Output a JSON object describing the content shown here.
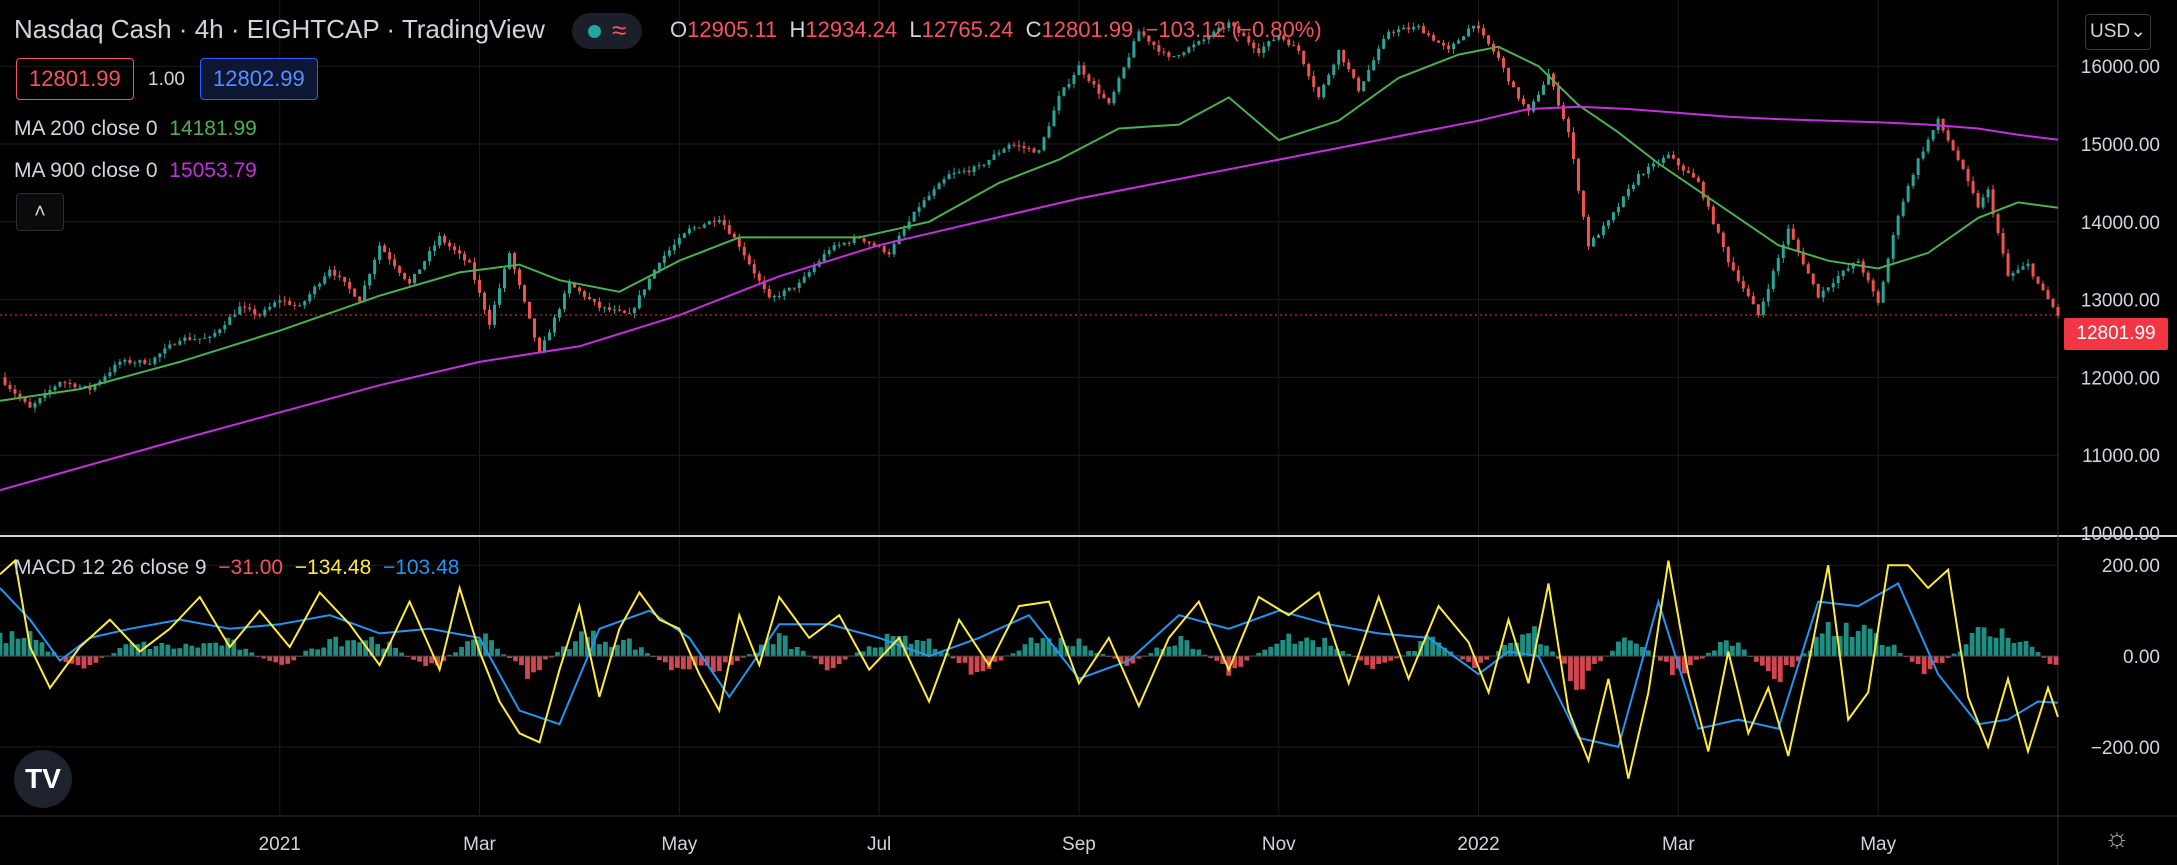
{
  "header": {
    "symbol": "Nasdaq Cash",
    "interval": "4h",
    "broker": "EIGHTCAP",
    "platform": "TradingView",
    "separator": "·",
    "status_icons": [
      "live-dot-icon",
      "wave-icon"
    ],
    "status_glyph": "≈"
  },
  "ohlc": {
    "o_label": "O",
    "o": "12905.11",
    "h_label": "H",
    "h": "12934.24",
    "l_label": "L",
    "l": "12765.24",
    "c_label": "C",
    "c": "12801.99",
    "change": "−103.12 (−0.80%)"
  },
  "trade": {
    "bid": "12801.99",
    "spread": "1.00",
    "ask": "12802.99"
  },
  "indicators": {
    "ma200": {
      "label": "MA 200 close 0",
      "value": "14181.99",
      "color": "#4caf50"
    },
    "ma900": {
      "label": "MA 900 close 0",
      "value": "15053.79",
      "color": "#c62ee0"
    },
    "macd": {
      "label": "MACD 12 26 close 9",
      "hist": "−31.00",
      "macd": "−134.48",
      "signal": "−103.48",
      "hist_color": "#f7525f",
      "macd_color": "#ffeb3b",
      "signal_color": "#2196f3"
    }
  },
  "controls": {
    "collapse_glyph": "˄",
    "currency": "USD",
    "currency_caret": "⌄",
    "logo_text": "TV",
    "settings_glyph": "☼"
  },
  "last_price_label": "12801.99",
  "colors": {
    "up": "#26a69a",
    "down": "#ef5350",
    "grid": "#1c1c1c",
    "axis_text": "#d1d4dc",
    "last_price": "#f23645"
  },
  "chart_data": [
    {
      "type": "candlestick",
      "title": "Nasdaq Cash · 4h · EIGHTCAP · TradingView",
      "ylim": [
        10000,
        16800
      ],
      "ytick_labels": [
        "16000.00",
        "15000.00",
        "14000.00",
        "13000.00",
        "12000.00",
        "11000.00",
        "10000.00"
      ],
      "y_ticks": [
        16000,
        15000,
        14000,
        13000,
        12000,
        11000,
        10000
      ],
      "x_ticks": [
        "2021",
        "Mar",
        "May",
        "Jul",
        "Sep",
        "Nov",
        "2022",
        "Mar",
        "May"
      ],
      "x_tick_pos": [
        3,
        5,
        7,
        9,
        11,
        13,
        15,
        17,
        19
      ],
      "x_range": [
        0.2,
        20.8
      ],
      "close_path": {
        "x": [
          0.2,
          0.5,
          0.8,
          1.1,
          1.4,
          1.7,
          2.0,
          2.3,
          2.6,
          2.8,
          3.0,
          3.2,
          3.5,
          3.8,
          4.0,
          4.3,
          4.6,
          4.9,
          5.1,
          5.3,
          5.6,
          5.9,
          6.2,
          6.5,
          6.8,
          7.1,
          7.4,
          7.6,
          7.9,
          8.2,
          8.5,
          8.8,
          9.1,
          9.4,
          9.7,
          10.0,
          10.3,
          10.6,
          10.8,
          11.0,
          11.3,
          11.6,
          11.9,
          12.2,
          12.5,
          12.8,
          13.0,
          13.2,
          13.4,
          13.6,
          13.8,
          14.1,
          14.4,
          14.7,
          14.95,
          15.2,
          15.35,
          15.5,
          15.7,
          15.9,
          16.1,
          16.3,
          16.6,
          16.9,
          17.2,
          17.5,
          17.8,
          18.1,
          18.4,
          18.6,
          18.8,
          19.0,
          19.2,
          19.4,
          19.6,
          19.8,
          20.0,
          20.1,
          20.3,
          20.5,
          20.6,
          20.8
        ],
        "y": [
          12000,
          11600,
          11950,
          11850,
          12200,
          12200,
          12500,
          12500,
          12900,
          12800,
          13000,
          12900,
          13400,
          13000,
          13700,
          13200,
          13800,
          13450,
          12700,
          13600,
          12300,
          13200,
          12900,
          12800,
          13500,
          13900,
          14050,
          13700,
          13000,
          13200,
          13650,
          13800,
          13600,
          14200,
          14600,
          14700,
          15000,
          14900,
          15600,
          16000,
          15500,
          16450,
          16100,
          16300,
          16550,
          16200,
          16400,
          16200,
          15600,
          16200,
          15700,
          16450,
          16500,
          16200,
          16550,
          16100,
          15700,
          15400,
          15900,
          15150,
          13700,
          14000,
          14600,
          14850,
          14500,
          13500,
          12800,
          13900,
          13050,
          13300,
          13500,
          12950,
          14100,
          14800,
          15300,
          14800,
          14200,
          14400,
          13300,
          13450,
          13200,
          12802
        ]
      },
      "series": [
        {
          "name": "MA 200 close 0",
          "x": [
            0.2,
            1.0,
            2.0,
            3.0,
            4.0,
            4.8,
            5.4,
            5.8,
            6.4,
            7.0,
            7.6,
            8.2,
            8.8,
            9.5,
            10.2,
            10.8,
            11.4,
            12.0,
            12.5,
            13.0,
            13.6,
            14.2,
            14.8,
            15.2,
            15.6,
            16.0,
            16.4,
            16.8,
            17.2,
            17.6,
            18.0,
            18.5,
            19.0,
            19.5,
            20.0,
            20.4,
            20.8
          ],
          "y": [
            11700,
            11850,
            12200,
            12600,
            13050,
            13350,
            13450,
            13250,
            13100,
            13500,
            13800,
            13800,
            13800,
            14000,
            14500,
            14800,
            15200,
            15250,
            15600,
            15050,
            15300,
            15850,
            16150,
            16250,
            16000,
            15500,
            15150,
            14750,
            14400,
            14050,
            13700,
            13500,
            13400,
            13600,
            14050,
            14250,
            14180
          ]
        },
        {
          "name": "MA 900 close 0",
          "x": [
            0.2,
            2.0,
            4.0,
            5.0,
            6.0,
            7.0,
            8.0,
            9.0,
            10.0,
            11.0,
            12.0,
            13.0,
            14.0,
            15.0,
            15.5,
            16.0,
            16.5,
            17.0,
            17.5,
            18.0,
            18.5,
            19.0,
            19.5,
            20.0,
            20.4,
            20.8
          ],
          "y": [
            10550,
            11200,
            11900,
            12200,
            12400,
            12800,
            13300,
            13700,
            14000,
            14300,
            14550,
            14800,
            15050,
            15300,
            15450,
            15480,
            15450,
            15400,
            15350,
            15320,
            15300,
            15280,
            15250,
            15200,
            15120,
            15054
          ]
        }
      ],
      "last_price": 12801.99
    },
    {
      "type": "line+histogram",
      "title": "MACD 12 26 close 9",
      "ylim": [
        -350,
        260
      ],
      "ytick_labels": [
        "200.00",
        "0.00",
        "−200.00"
      ],
      "y_ticks": [
        200,
        0,
        -200
      ],
      "series": [
        {
          "name": "MACD",
          "x": [
            0.2,
            0.35,
            0.5,
            0.7,
            1.0,
            1.3,
            1.6,
            1.9,
            2.2,
            2.5,
            2.8,
            3.1,
            3.4,
            3.7,
            4.0,
            4.3,
            4.6,
            4.8,
            5.0,
            5.2,
            5.4,
            5.6,
            5.8,
            6.0,
            6.2,
            6.4,
            6.6,
            6.8,
            7.0,
            7.2,
            7.4,
            7.6,
            7.8,
            8.0,
            8.3,
            8.6,
            8.9,
            9.2,
            9.5,
            9.8,
            10.1,
            10.4,
            10.7,
            11.0,
            11.3,
            11.6,
            11.9,
            12.2,
            12.5,
            12.8,
            13.1,
            13.4,
            13.7,
            14.0,
            14.3,
            14.6,
            14.9,
            15.1,
            15.3,
            15.5,
            15.7,
            15.9,
            16.1,
            16.3,
            16.5,
            16.7,
            16.9,
            17.1,
            17.3,
            17.5,
            17.7,
            17.9,
            18.1,
            18.3,
            18.5,
            18.7,
            18.9,
            19.1,
            19.3,
            19.5,
            19.7,
            19.9,
            20.1,
            20.3,
            20.5,
            20.7,
            20.8
          ],
          "y": [
            180,
            210,
            20,
            -70,
            20,
            80,
            10,
            60,
            130,
            20,
            100,
            20,
            140,
            70,
            -20,
            120,
            -30,
            150,
            10,
            -100,
            -170,
            -190,
            -30,
            110,
            -90,
            60,
            140,
            80,
            60,
            -40,
            -120,
            90,
            -20,
            130,
            40,
            90,
            -30,
            40,
            -100,
            80,
            -20,
            110,
            120,
            -60,
            40,
            -110,
            40,
            120,
            -30,
            130,
            90,
            140,
            -60,
            130,
            -50,
            110,
            30,
            -80,
            80,
            -60,
            160,
            -120,
            -230,
            -50,
            -270,
            -80,
            210,
            -40,
            -210,
            10,
            -170,
            -70,
            -220,
            -20,
            200,
            -140,
            -80,
            200,
            200,
            150,
            190,
            -90,
            -200,
            -50,
            -210,
            -70,
            -134
          ]
        },
        {
          "name": "Signal",
          "x": [
            0.2,
            0.5,
            0.8,
            1.1,
            1.5,
            2.0,
            2.5,
            3.0,
            3.5,
            4.0,
            4.5,
            5.0,
            5.4,
            5.8,
            6.2,
            6.7,
            7.1,
            7.5,
            8.0,
            8.5,
            9.0,
            9.5,
            10.0,
            10.5,
            11.0,
            11.5,
            12.0,
            12.5,
            13.0,
            13.5,
            14.0,
            14.5,
            15.0,
            15.3,
            15.6,
            16.0,
            16.4,
            16.8,
            17.2,
            17.6,
            18.0,
            18.4,
            18.8,
            19.2,
            19.6,
            20.0,
            20.3,
            20.6,
            20.8
          ],
          "y": [
            150,
            80,
            -10,
            40,
            60,
            80,
            60,
            70,
            90,
            50,
            60,
            40,
            -120,
            -150,
            60,
            100,
            40,
            -90,
            70,
            70,
            40,
            0,
            40,
            90,
            -50,
            -10,
            90,
            60,
            100,
            70,
            50,
            40,
            -40,
            10,
            0,
            -180,
            -200,
            120,
            -160,
            -140,
            -160,
            120,
            110,
            160,
            -40,
            -150,
            -140,
            -100,
            -103
          ]
        },
        {
          "name": "Histogram",
          "x": [
            0.5,
            1.0,
            1.5,
            2.0,
            2.5,
            3.0,
            3.5,
            4.0,
            4.5,
            5.0,
            5.5,
            6.0,
            6.5,
            7.0,
            7.5,
            8.0,
            8.5,
            9.0,
            9.5,
            10.0,
            10.5,
            11.0,
            11.5,
            12.0,
            12.5,
            13.0,
            13.5,
            14.0,
            14.5,
            15.0,
            15.5,
            16.0,
            16.5,
            17.0,
            17.5,
            18.0,
            18.5,
            19.0,
            19.5,
            20.0,
            20.4,
            20.8
          ],
          "y": [
            40,
            -30,
            25,
            20,
            30,
            -25,
            40,
            35,
            -30,
            50,
            -40,
            45,
            30,
            -35,
            -20,
            40,
            -25,
            35,
            30,
            -40,
            35,
            30,
            -20,
            45,
            -35,
            40,
            30,
            -30,
            35,
            -25,
            70,
            -60,
            50,
            -45,
            40,
            -50,
            55,
            45,
            -40,
            50,
            45,
            -31
          ]
        }
      ]
    }
  ]
}
